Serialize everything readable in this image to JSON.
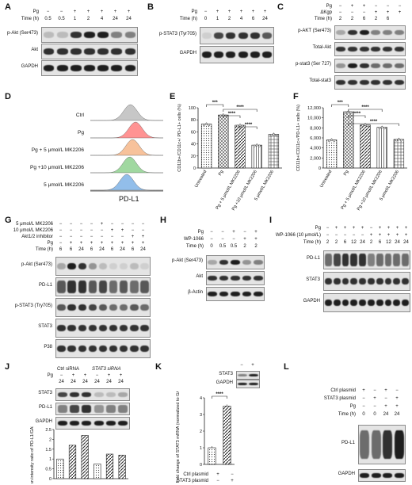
{
  "panels": {
    "A": {
      "letter": "A",
      "pg_label": "Pg",
      "pg": [
        "−",
        "−",
        "+",
        "+",
        "+",
        "+",
        "+"
      ],
      "time_label": "Time (h)",
      "time": [
        "0.5",
        "0.5",
        "1",
        "2",
        "4",
        "24",
        "24"
      ],
      "blots": [
        "p-Akt (Ser473)",
        "Akt",
        "GAPDH"
      ]
    },
    "B": {
      "letter": "B",
      "pg_label": "Pg",
      "pg": [
        "−",
        "+",
        "+",
        "+",
        "+",
        "+"
      ],
      "time_label": "Time (h)",
      "time": [
        "0",
        "1",
        "2",
        "4",
        "6",
        "24"
      ],
      "blots": [
        "p-STAT3 (Tyr705)",
        "GAPDH"
      ]
    },
    "C": {
      "letter": "C",
      "pg_label": "Pg",
      "pg": [
        "−",
        "+",
        "+",
        "−",
        "−",
        "−"
      ],
      "akgp_label": "ΔKgp",
      "akgp": [
        "−",
        "−",
        "−",
        "+",
        "+",
        "+"
      ],
      "time_label": "Time (h)",
      "time": [
        "2",
        "2",
        "6",
        "2",
        "6",
        ""
      ],
      "blots": [
        "p-AKT (Ser473)",
        "Total-Akt",
        "p-stat3 (Ser 727)",
        "Total-stat3"
      ]
    },
    "D": {
      "letter": "D",
      "groups": [
        "Ctrl",
        "Pg",
        "Pg + 5 μmol/L MK2206",
        "Pg +10 μmol/L MK2206",
        "5 μmol/L MK2206"
      ],
      "xlabel": "PD-L1"
    },
    "E": {
      "letter": "E",
      "ylabel": "CD11b+/CD11c+/ PD-L1+ cells (%)",
      "yticks": [
        "0",
        "20",
        "40",
        "60",
        "80",
        "100"
      ],
      "categories": [
        "Untreated",
        "Pg",
        "Pg + 5 μmol/L MK2206",
        "Pg +10 μmol/L MK2206",
        "5 μmol/L MK2206"
      ],
      "sig": [
        "***",
        "****",
        "****",
        "****"
      ]
    },
    "F": {
      "letter": "F",
      "ylabel": "CD11b+/CD11c+/PD-L1+ cells (%)",
      "yticks": [
        "0",
        "2,000",
        "4,000",
        "6,000",
        "8,000",
        "10,000",
        "12,000"
      ],
      "categories": [
        "Untreated",
        "Pg",
        "Pg + 5 μmol/L MK2206",
        "Pg +10 μmol/L MK2206",
        "5 μmol/L MK2206"
      ],
      "sig": [
        "***",
        "****",
        "****",
        "****"
      ]
    },
    "G": {
      "letter": "G",
      "rows": [
        {
          "label": "5 μmol/L MK2206",
          "vals": [
            "−",
            "−",
            "−",
            "−",
            "+",
            "−",
            "−",
            "−",
            "−"
          ]
        },
        {
          "label": "10 μmol/L MK2206",
          "vals": [
            "−",
            "−",
            "−",
            "−",
            "−",
            "+",
            "+",
            "−",
            "−"
          ]
        },
        {
          "label": "Akt1/2 inhibitor",
          "vals": [
            "−",
            "−",
            "−",
            "−",
            "−",
            "−",
            "−",
            "+",
            "+"
          ]
        },
        {
          "label": "Pg",
          "vals": [
            "−",
            "+",
            "+",
            "+",
            "+",
            "+",
            "+",
            "+",
            "+"
          ]
        },
        {
          "label": "Time (h)",
          "vals": [
            "6",
            "6",
            "24",
            "6",
            "24",
            "6",
            "24",
            "6",
            "24"
          ]
        }
      ],
      "blots": [
        "p-Akt (Ser473)",
        "PD-L1",
        "p-STAT3 (Try705)",
        "STAT3",
        "P38"
      ]
    },
    "H": {
      "letter": "H",
      "rows": [
        {
          "label": "Pg",
          "vals": [
            "−",
            "−",
            "+",
            "−",
            "+"
          ]
        },
        {
          "label": "WP-1066",
          "vals": [
            "−",
            "−",
            "−",
            "+",
            "+"
          ]
        },
        {
          "label": "Time (h)",
          "vals": [
            "0",
            "0.5",
            "0.5",
            "2",
            "2"
          ]
        }
      ],
      "blots": [
        "p-Akt (Ser473)",
        "Akt",
        "β-Actin"
      ]
    },
    "I": {
      "letter": "I",
      "rows": [
        {
          "label": "Pg",
          "vals": [
            "−",
            "+",
            "+",
            "+",
            "+",
            "−",
            "+",
            "+",
            "+",
            "+"
          ]
        },
        {
          "label": "WP-1066 (10 μmol/L)",
          "vals": [
            "−",
            "−",
            "−",
            "−",
            "−",
            "+",
            "+",
            "+",
            "+",
            "+"
          ]
        },
        {
          "label": "Time (h)",
          "vals": [
            "2",
            "2",
            "6",
            "12",
            "24",
            "2",
            "6",
            "12",
            "24",
            "24"
          ]
        }
      ],
      "blots": [
        "PD-L1",
        "STAT3",
        "GAPDH"
      ]
    },
    "J": {
      "letter": "J",
      "groups": [
        "Ctrl siRNA",
        "STAT3 siRNA"
      ],
      "pg_label": "Pg",
      "pg": [
        "−",
        "+",
        "+",
        "−",
        "+",
        "+"
      ],
      "time": [
        "24",
        "24",
        "24",
        "24",
        "24",
        "24"
      ],
      "blots": [
        "STAT3",
        "PD-L1",
        "GAPDH"
      ],
      "ylabel": "Mean intensity ratio of PD-L1/GAPDH",
      "yticks": [
        "0",
        "0.5",
        "1",
        "1.5",
        "2",
        "2.5"
      ]
    },
    "K": {
      "letter": "K",
      "blot_cols": [
        "−",
        "+"
      ],
      "blots": [
        "STAT3",
        "GAPDH"
      ],
      "ylabel": "Fold change of STAT3 mRNA (normalized to GAPDH)",
      "yticks": [
        "0",
        "1",
        "2",
        "3",
        "4"
      ],
      "rows": [
        {
          "label": "Ctrl plasmid",
          "vals": [
            "+",
            "−"
          ]
        },
        {
          "label": "STAT3 plasmid",
          "vals": [
            "−",
            "+"
          ]
        }
      ],
      "sig": "****"
    },
    "L": {
      "letter": "L",
      "rows": [
        {
          "label": "Ctrl plasmid",
          "vals": [
            "+",
            "−",
            "+",
            "−"
          ]
        },
        {
          "label": "STAT3 plasmid",
          "vals": [
            "−",
            "+",
            "−",
            "+"
          ]
        },
        {
          "label": "Pg",
          "vals": [
            "−",
            "−",
            "+",
            "+"
          ]
        },
        {
          "label": "Time (h)",
          "vals": [
            "0",
            "0",
            "24",
            "24"
          ]
        }
      ],
      "blots": [
        "PD-L1",
        "GAPDH"
      ]
    }
  },
  "chart_data": [
    {
      "type": "bar",
      "panel": "E",
      "categories": [
        "Untreated",
        "Pg",
        "Pg + 5 μmol/L MK2206",
        "Pg +10 μmol/L MK2206",
        "5 μmol/L MK2206"
      ],
      "values": [
        73,
        88,
        71,
        38,
        56
      ],
      "ylim": [
        0,
        100
      ],
      "ylabel": "CD11b+/CD11c+/ PD-L1+ cells (%)"
    },
    {
      "type": "bar",
      "panel": "F",
      "categories": [
        "Untreated",
        "Pg",
        "Pg + 5 μmol/L MK2206",
        "Pg +10 μmol/L MK2206",
        "5 μmol/L MK2206"
      ],
      "values": [
        5600,
        11200,
        8600,
        8100,
        5700
      ],
      "ylim": [
        0,
        12000
      ],
      "ylabel": "CD11b+/CD11c+/PD-L1+ cells (%)"
    },
    {
      "type": "bar",
      "panel": "J",
      "values": [
        1.0,
        1.7,
        2.2,
        0.75,
        1.25,
        1.2
      ],
      "ylim": [
        0,
        2.5
      ],
      "ylabel": "Mean intensity ratio of PD-L1/GAPDH"
    },
    {
      "type": "bar",
      "panel": "K",
      "categories": [
        "Ctrl plasmid",
        "STAT3 plasmid"
      ],
      "values": [
        1.0,
        3.5
      ],
      "ylim": [
        0,
        4
      ],
      "ylabel": "Fold change of STAT3 mRNA (normalized to GAPDH)"
    }
  ]
}
